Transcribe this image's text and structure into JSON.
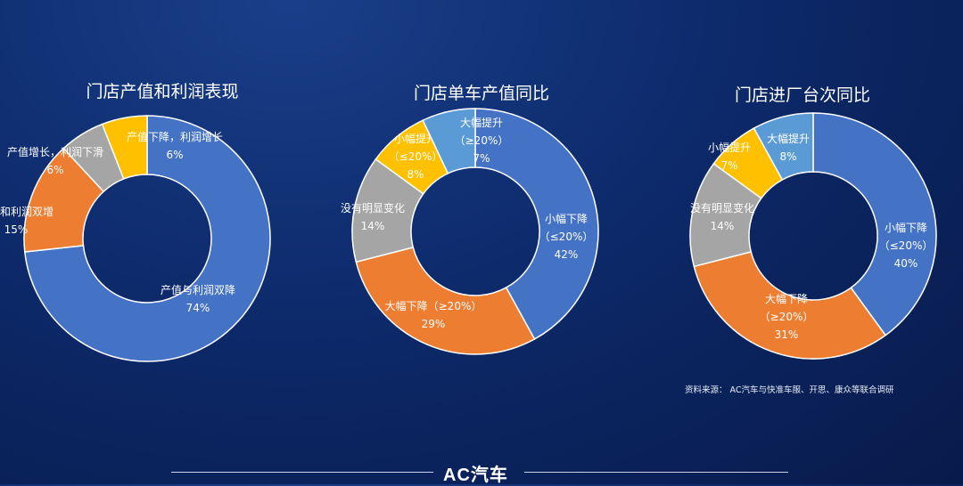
{
  "chart_data": [
    {
      "type": "pie",
      "title": "门店产值和利润表现",
      "slices": [
        {
          "name": "产值与利润双降",
          "value": 74,
          "label": "74%",
          "color": "#4472c4"
        },
        {
          "name": "产值和利润双增",
          "value": 15,
          "label": "15%",
          "color": "#ed7d31"
        },
        {
          "name": "产值增长，利润下滑",
          "value": 6,
          "label": "6%",
          "color": "#a5a5a5"
        },
        {
          "name": "产值下降，利润增长",
          "value": 6,
          "label": "6%",
          "color": "#ffc000"
        }
      ]
    },
    {
      "type": "pie",
      "title": "门店单车产值同比",
      "slices": [
        {
          "name": "小幅下降",
          "sub": "（≤20%）",
          "value": 42,
          "label": "42%",
          "color": "#4472c4"
        },
        {
          "name": "大幅下降（≥20%）",
          "value": 29,
          "label": "29%",
          "color": "#ed7d31"
        },
        {
          "name": "没有明显变化",
          "value": 14,
          "label": "14%",
          "color": "#a5a5a5"
        },
        {
          "name": "小幅提升",
          "sub": "（≤20%）",
          "value": 8,
          "label": "8%",
          "color": "#ffc000"
        },
        {
          "name": "大幅提升",
          "sub": "（≥20%）",
          "value": 7,
          "label": "7%",
          "color": "#5b9bd5"
        }
      ]
    },
    {
      "type": "pie",
      "title": "门店进厂台次同比",
      "slices": [
        {
          "name": "小幅下降",
          "sub": "（≤20%）",
          "value": 40,
          "label": "40%",
          "color": "#4472c4"
        },
        {
          "name": "大幅下降",
          "sub": "（≥20%）",
          "value": 31,
          "label": "31%",
          "color": "#ed7d31"
        },
        {
          "name": "没有明显变化",
          "value": 14,
          "label": "14%",
          "color": "#a5a5a5"
        },
        {
          "name": "小幅提升",
          "value": 7,
          "label": "7%",
          "color": "#ffc000"
        },
        {
          "name": "大幅提升",
          "value": 8,
          "label": "8%",
          "color": "#5b9bd5"
        }
      ]
    }
  ],
  "source": "资料来源： AC汽车与快准车服、开思、康众等联合调研",
  "brand": "AC汽车"
}
